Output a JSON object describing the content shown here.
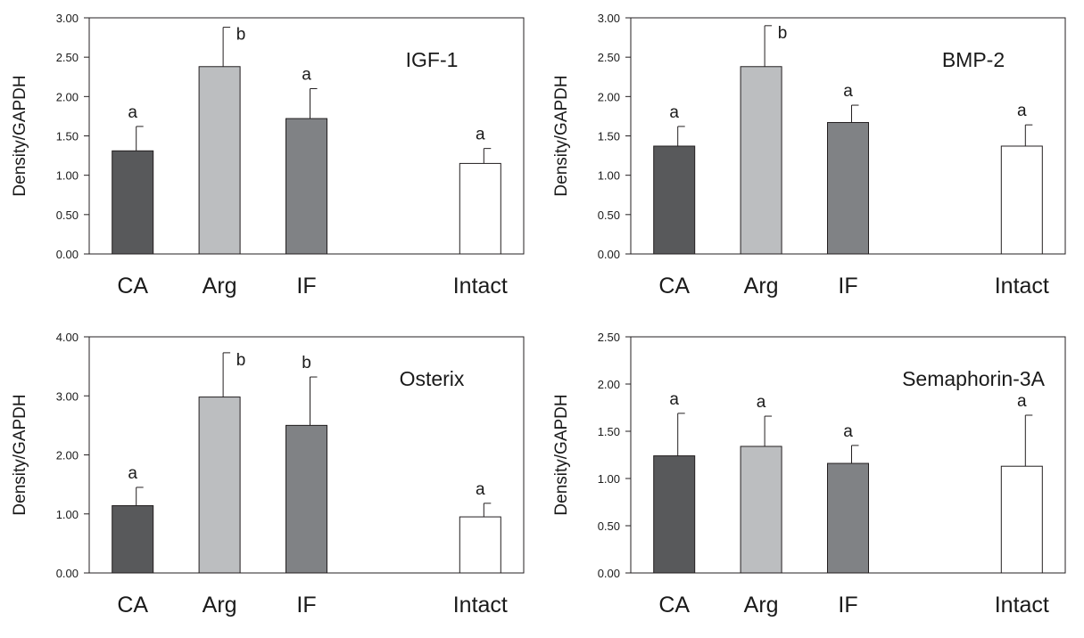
{
  "chart_data": [
    {
      "type": "bar",
      "title": "IGF-1",
      "ylabel": "Density/GAPDH",
      "xlabel": "",
      "categories": [
        "CA",
        "Arg",
        "IF",
        "Intact"
      ],
      "values": [
        1.31,
        2.38,
        1.72,
        1.15
      ],
      "errors": [
        0.31,
        0.5,
        0.38,
        0.19
      ],
      "significance": [
        "a",
        "b",
        "a",
        "a"
      ],
      "ylim": [
        0,
        3
      ],
      "yticks": [
        "0.00",
        "0.50",
        "1.00",
        "1.50",
        "2.00",
        "2.50",
        "3.00"
      ],
      "grid": false
    },
    {
      "type": "bar",
      "title": "BMP-2",
      "ylabel": "Density/GAPDH",
      "xlabel": "",
      "categories": [
        "CA",
        "Arg",
        "IF",
        "Intact"
      ],
      "values": [
        1.37,
        2.38,
        1.67,
        1.37
      ],
      "errors": [
        0.25,
        0.52,
        0.22,
        0.27
      ],
      "significance": [
        "a",
        "b",
        "a",
        "a"
      ],
      "ylim": [
        0,
        3
      ],
      "yticks": [
        "0.00",
        "0.50",
        "1.00",
        "1.50",
        "2.00",
        "2.50",
        "3.00"
      ],
      "grid": false
    },
    {
      "type": "bar",
      "title": "Osterix",
      "ylabel": "Density/GAPDH",
      "xlabel": "",
      "categories": [
        "CA",
        "Arg",
        "IF",
        "Intact"
      ],
      "values": [
        1.14,
        2.98,
        2.5,
        0.95
      ],
      "errors": [
        0.31,
        0.75,
        0.82,
        0.23
      ],
      "significance": [
        "a",
        "b",
        "b",
        "a"
      ],
      "ylim": [
        0,
        4
      ],
      "yticks": [
        "0.00",
        "1.00",
        "2.00",
        "3.00",
        "4.00"
      ],
      "grid": false
    },
    {
      "type": "bar",
      "title": "Semaphorin-3A",
      "ylabel": "Density/GAPDH",
      "xlabel": "",
      "categories": [
        "CA",
        "Arg",
        "IF",
        "Intact"
      ],
      "values": [
        1.24,
        1.34,
        1.16,
        1.13
      ],
      "errors": [
        0.45,
        0.32,
        0.19,
        0.54
      ],
      "significance": [
        "a",
        "a",
        "a",
        "a"
      ],
      "ylim": [
        0,
        2.5
      ],
      "yticks": [
        "0.00",
        "0.50",
        "1.00",
        "1.50",
        "2.00",
        "2.50"
      ],
      "grid": false
    }
  ],
  "colors": {
    "CA": "#58595b",
    "Arg": "#bcbec0",
    "IF": "#808285",
    "Intact": "#ffffff",
    "axis": "#231f20"
  }
}
